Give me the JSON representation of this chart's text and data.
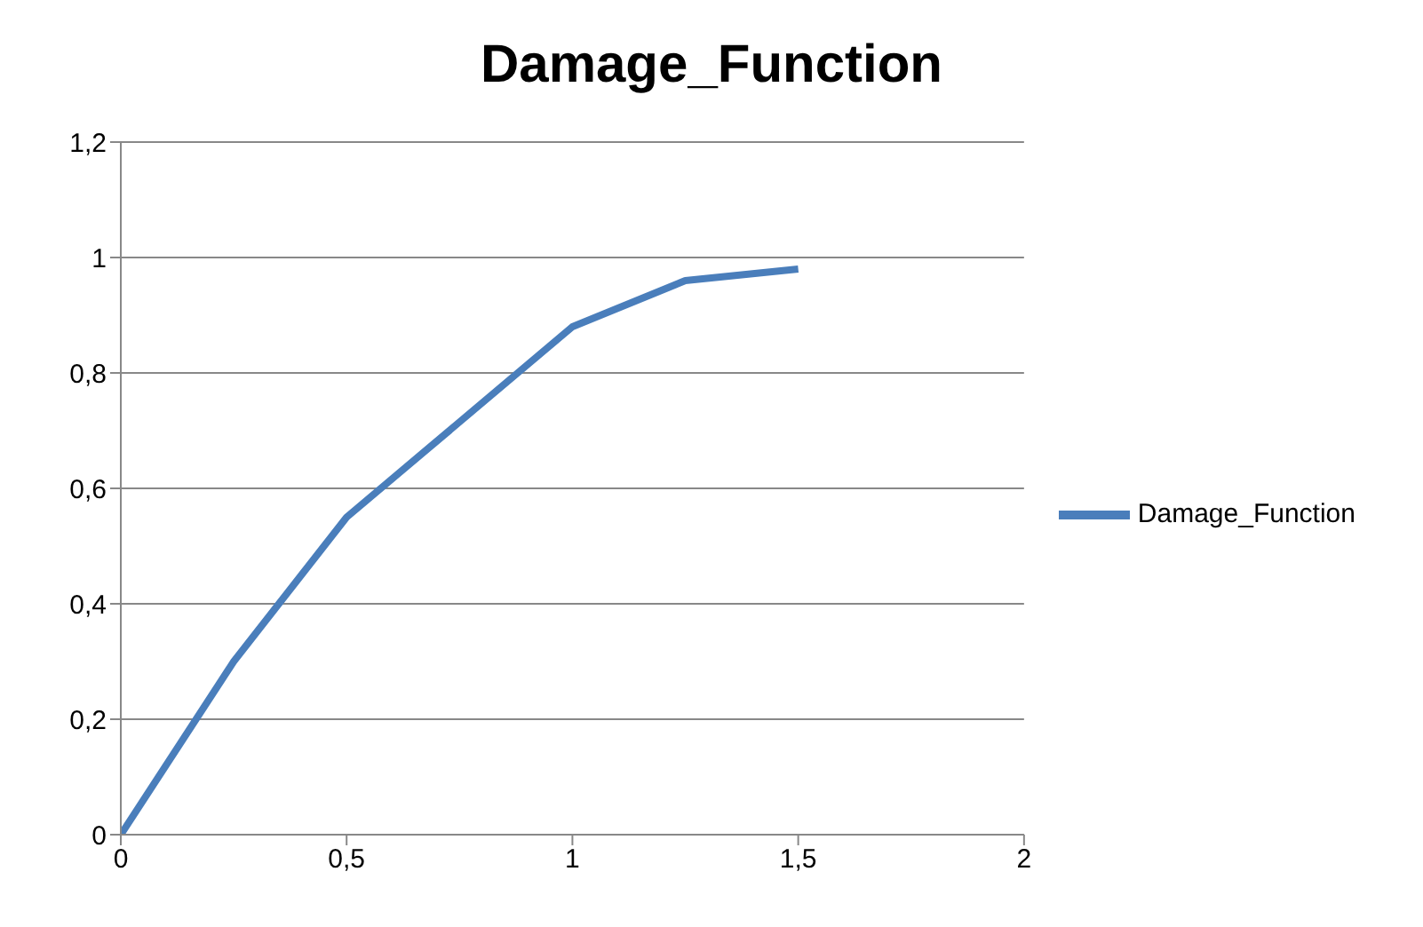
{
  "chart_data": {
    "type": "line",
    "title": "Damage_Function",
    "x": [
      0,
      0.25,
      0.5,
      1,
      1.25,
      1.5
    ],
    "series": [
      {
        "name": "Damage_Function",
        "color": "#4a7ebb",
        "values": [
          0,
          0.3,
          0.55,
          0.88,
          0.96,
          0.98
        ]
      }
    ],
    "xlim": [
      0,
      2
    ],
    "xticks": [
      0,
      {
        "value": 0.5,
        "label": "0,5"
      },
      1,
      {
        "value": 1.5,
        "label": "1,5"
      },
      2
    ],
    "ylim": [
      0,
      1.2
    ],
    "yticks": [
      0,
      {
        "value": 0.2,
        "label": "0,2"
      },
      {
        "value": 0.4,
        "label": "0,4"
      },
      {
        "value": 0.6,
        "label": "0,6"
      },
      {
        "value": 0.8,
        "label": "0,8"
      },
      1,
      {
        "value": 1.2,
        "label": "1,2"
      }
    ],
    "grid": "y",
    "legend": "right",
    "marker": "none",
    "line_style": "solid"
  }
}
